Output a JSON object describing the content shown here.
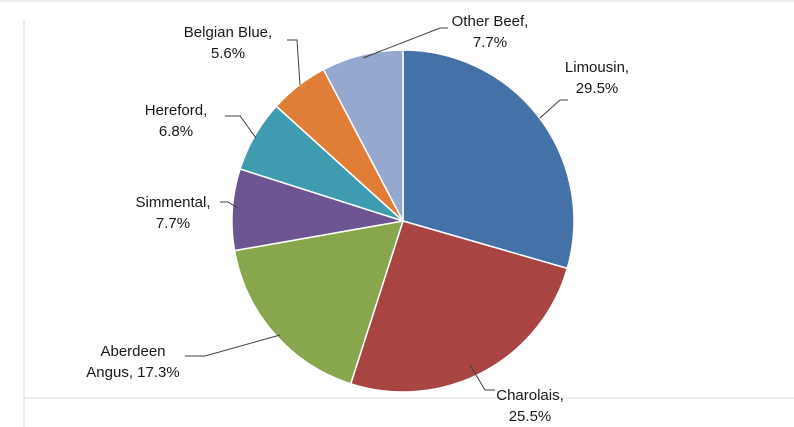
{
  "chart_data": {
    "type": "pie",
    "title": "",
    "start_angle_deg": 0,
    "direction": "clockwise",
    "slices": [
      {
        "name": "Limousin",
        "value": 29.5,
        "color": "#4472A8",
        "label_lines": [
          "Limousin,",
          "29.5%"
        ]
      },
      {
        "name": "Charolais",
        "value": 25.5,
        "color": "#A84543",
        "label_lines": [
          "Charolais,",
          "25.5%"
        ]
      },
      {
        "name": "Aberdeen Angus",
        "value": 17.3,
        "color": "#88A74C",
        "label_lines": [
          "Aberdeen",
          "Angus, 17.3%"
        ]
      },
      {
        "name": "Simmental",
        "value": 7.7,
        "color": "#6C5592",
        "label_lines": [
          "Simmental,",
          "7.7%"
        ]
      },
      {
        "name": "Hereford",
        "value": 6.8,
        "color": "#3F9CB0",
        "label_lines": [
          "Hereford,",
          "6.8%"
        ]
      },
      {
        "name": "Belgian Blue",
        "value": 5.6,
        "color": "#E07E38",
        "label_lines": [
          "Belgian Blue,",
          "5.6%"
        ]
      },
      {
        "name": "Other Beef",
        "value": 7.7,
        "color": "#95A8D0",
        "label_lines": [
          "Other Beef,",
          "7.7%"
        ]
      }
    ]
  }
}
